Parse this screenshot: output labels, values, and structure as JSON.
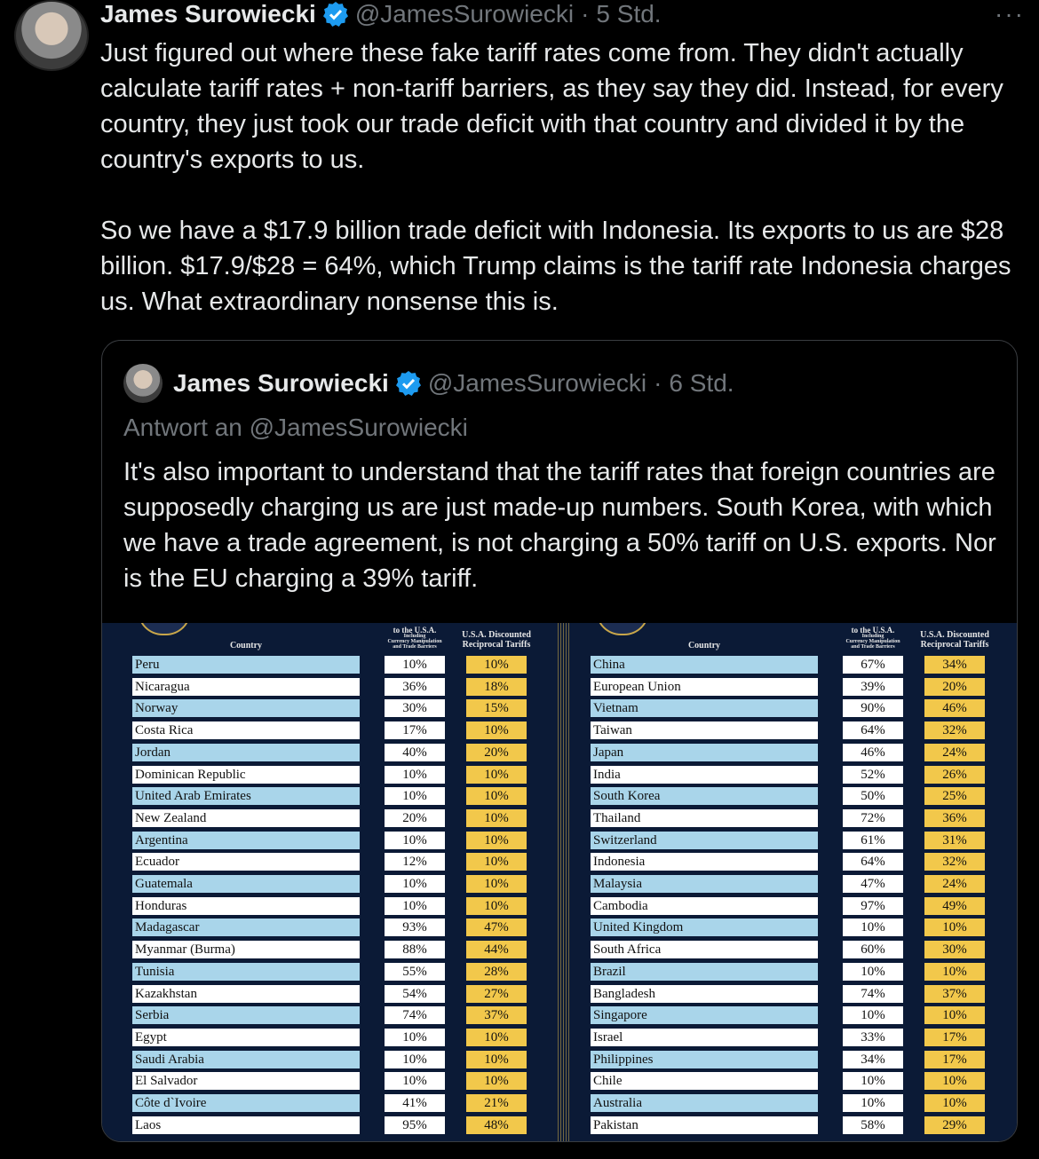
{
  "tweet": {
    "author_name": "James Surowiecki",
    "handle": "@JamesSurowiecki",
    "separator": "·",
    "time": "5 Std.",
    "more": "···",
    "paragraph1": "Just figured out where these fake tariff rates come from. They didn't actually calculate tariff rates + non-tariff barriers, as they say they did. Instead, for every country, they just took our trade deficit with that country and divided it by the country's exports to us.",
    "paragraph2": "So we have a $17.9 billion trade deficit with Indonesia. Its exports to us are $28 billion. $17.9/$28 = 64%, which Trump claims is the tariff rate Indonesia charges us. What extraordinary nonsense this is."
  },
  "quoted": {
    "author_name": "James Surowiecki",
    "handle": "@JamesSurowiecki",
    "separator": "·",
    "time": "6 Std.",
    "reply_to": "Antwort an @JamesSurowiecki",
    "text": "It's also important to understand that the tariff rates that foreign countries are supposedly charging us are just made-up numbers. South Korea, with which we have a trade agreement, is not charging a 50% tariff on U.S. exports. Nor is the EU charging a 39% tariff."
  },
  "table": {
    "col_country": "Country",
    "col_rate_top": "to the U.S.A.",
    "col_rate_sub1": "Including",
    "col_rate_sub2": "Currency Manipulation",
    "col_rate_sub3": "and Trade Barriers",
    "col_disc1": "U.S.A. Discounted",
    "col_disc2": "Reciprocal Tariffs",
    "left_rows": [
      [
        "Peru",
        "10%",
        "10%"
      ],
      [
        "Nicaragua",
        "36%",
        "18%"
      ],
      [
        "Norway",
        "30%",
        "15%"
      ],
      [
        "Costa Rica",
        "17%",
        "10%"
      ],
      [
        "Jordan",
        "40%",
        "20%"
      ],
      [
        "Dominican Republic",
        "10%",
        "10%"
      ],
      [
        "United Arab Emirates",
        "10%",
        "10%"
      ],
      [
        "New Zealand",
        "20%",
        "10%"
      ],
      [
        "Argentina",
        "10%",
        "10%"
      ],
      [
        "Ecuador",
        "12%",
        "10%"
      ],
      [
        "Guatemala",
        "10%",
        "10%"
      ],
      [
        "Honduras",
        "10%",
        "10%"
      ],
      [
        "Madagascar",
        "93%",
        "47%"
      ],
      [
        "Myanmar (Burma)",
        "88%",
        "44%"
      ],
      [
        "Tunisia",
        "55%",
        "28%"
      ],
      [
        "Kazakhstan",
        "54%",
        "27%"
      ],
      [
        "Serbia",
        "74%",
        "37%"
      ],
      [
        "Egypt",
        "10%",
        "10%"
      ],
      [
        "Saudi Arabia",
        "10%",
        "10%"
      ],
      [
        "El Salvador",
        "10%",
        "10%"
      ],
      [
        "Côte d`Ivoire",
        "41%",
        "21%"
      ],
      [
        "Laos",
        "95%",
        "48%"
      ]
    ],
    "right_rows": [
      [
        "China",
        "67%",
        "34%"
      ],
      [
        "European Union",
        "39%",
        "20%"
      ],
      [
        "Vietnam",
        "90%",
        "46%"
      ],
      [
        "Taiwan",
        "64%",
        "32%"
      ],
      [
        "Japan",
        "46%",
        "24%"
      ],
      [
        "India",
        "52%",
        "26%"
      ],
      [
        "South Korea",
        "50%",
        "25%"
      ],
      [
        "Thailand",
        "72%",
        "36%"
      ],
      [
        "Switzerland",
        "61%",
        "31%"
      ],
      [
        "Indonesia",
        "64%",
        "32%"
      ],
      [
        "Malaysia",
        "47%",
        "24%"
      ],
      [
        "Cambodia",
        "97%",
        "49%"
      ],
      [
        "United Kingdom",
        "10%",
        "10%"
      ],
      [
        "South Africa",
        "60%",
        "30%"
      ],
      [
        "Brazil",
        "10%",
        "10%"
      ],
      [
        "Bangladesh",
        "74%",
        "37%"
      ],
      [
        "Singapore",
        "10%",
        "10%"
      ],
      [
        "Israel",
        "33%",
        "17%"
      ],
      [
        "Philippines",
        "34%",
        "17%"
      ],
      [
        "Chile",
        "10%",
        "10%"
      ],
      [
        "Australia",
        "10%",
        "10%"
      ],
      [
        "Pakistan",
        "58%",
        "29%"
      ]
    ]
  },
  "colors": {
    "background": "#000000",
    "verified": "#1d9bf0",
    "muted": "#71767b",
    "row_blue": "#a9d5ea",
    "row_gold": "#f2c84b",
    "table_bg": "#0b1a36"
  }
}
